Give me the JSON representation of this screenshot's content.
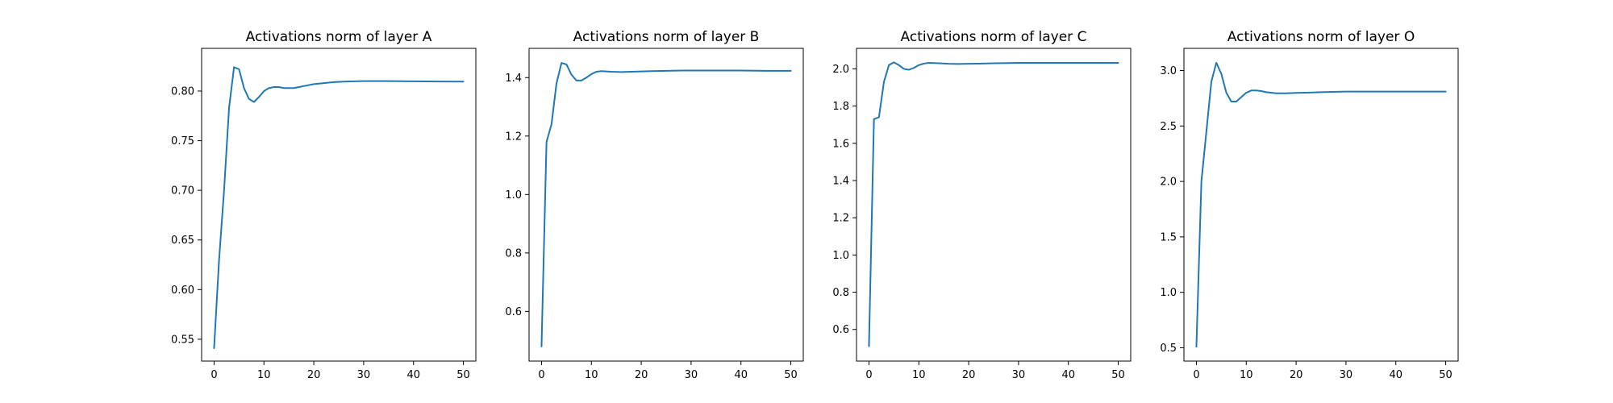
{
  "chart_data": [
    {
      "type": "line",
      "title": "Activations norm of layer A",
      "xlabel": "",
      "ylabel": "",
      "xlim": [
        -2.5,
        52.5
      ],
      "ylim": [
        0.528,
        0.843
      ],
      "xticks": [
        0,
        10,
        20,
        30,
        40,
        50
      ],
      "yticks": [
        0.55,
        0.6,
        0.65,
        0.7,
        0.75,
        0.8
      ],
      "ytick_labels": [
        "0.55",
        "0.60",
        "0.65",
        "0.70",
        "0.75",
        "0.80"
      ],
      "grid": false,
      "color": "#1f77b4",
      "series": [
        {
          "x": [
            0,
            1,
            2,
            3,
            4,
            5,
            6,
            7,
            8,
            9,
            10,
            11,
            12,
            13,
            14,
            15,
            16,
            17,
            18,
            19,
            20,
            22,
            24,
            26,
            28,
            30,
            32,
            35,
            40,
            45,
            50
          ],
          "y": [
            0.541,
            0.63,
            0.7,
            0.783,
            0.824,
            0.822,
            0.803,
            0.792,
            0.789,
            0.794,
            0.8,
            0.803,
            0.804,
            0.804,
            0.803,
            0.803,
            0.803,
            0.804,
            0.805,
            0.806,
            0.807,
            0.808,
            0.809,
            0.8095,
            0.8098,
            0.81,
            0.81,
            0.81,
            0.8098,
            0.8096,
            0.8095
          ]
        }
      ]
    },
    {
      "type": "line",
      "title": "Activations norm of layer B",
      "xlabel": "",
      "ylabel": "",
      "xlim": [
        -2.5,
        52.5
      ],
      "ylim": [
        0.43,
        1.5
      ],
      "xticks": [
        0,
        10,
        20,
        30,
        40,
        50
      ],
      "yticks": [
        0.6,
        0.8,
        1.0,
        1.2,
        1.4
      ],
      "ytick_labels": [
        "0.6",
        "0.8",
        "1.0",
        "1.2",
        "1.4"
      ],
      "grid": false,
      "color": "#1f77b4",
      "series": [
        {
          "x": [
            0,
            1,
            2,
            3,
            4,
            5,
            6,
            7,
            8,
            9,
            10,
            11,
            12,
            13,
            14,
            16,
            18,
            20,
            22,
            25,
            28,
            30,
            35,
            40,
            45,
            50
          ],
          "y": [
            0.48,
            1.18,
            1.24,
            1.38,
            1.45,
            1.445,
            1.41,
            1.39,
            1.39,
            1.4,
            1.412,
            1.42,
            1.422,
            1.421,
            1.42,
            1.419,
            1.42,
            1.421,
            1.422,
            1.423,
            1.424,
            1.424,
            1.424,
            1.424,
            1.423,
            1.423
          ]
        }
      ]
    },
    {
      "type": "line",
      "title": "Activations norm of layer C",
      "xlabel": "",
      "ylabel": "",
      "xlim": [
        -2.5,
        52.5
      ],
      "ylim": [
        0.43,
        2.11
      ],
      "xticks": [
        0,
        10,
        20,
        30,
        40,
        50
      ],
      "yticks": [
        0.6,
        0.8,
        1.0,
        1.2,
        1.4,
        1.6,
        1.8,
        2.0
      ],
      "ytick_labels": [
        "0.6",
        "0.8",
        "1.0",
        "1.2",
        "1.4",
        "1.6",
        "1.8",
        "2.0"
      ],
      "grid": false,
      "color": "#1f77b4",
      "series": [
        {
          "x": [
            0,
            1,
            2,
            3,
            4,
            5,
            6,
            7,
            8,
            9,
            10,
            11,
            12,
            13,
            14,
            16,
            18,
            20,
            22,
            25,
            28,
            30,
            35,
            40,
            45,
            50
          ],
          "y": [
            0.51,
            1.73,
            1.74,
            1.93,
            2.02,
            2.035,
            2.02,
            2.0,
            1.995,
            2.005,
            2.02,
            2.028,
            2.032,
            2.031,
            2.03,
            2.027,
            2.026,
            2.027,
            2.028,
            2.03,
            2.031,
            2.032,
            2.032,
            2.032,
            2.032,
            2.032
          ]
        }
      ]
    },
    {
      "type": "line",
      "title": "Activations norm of layer O",
      "xlabel": "",
      "ylabel": "",
      "xlim": [
        -2.5,
        52.5
      ],
      "ylim": [
        0.38,
        3.2
      ],
      "xticks": [
        0,
        10,
        20,
        30,
        40,
        50
      ],
      "yticks": [
        0.5,
        1.0,
        1.5,
        2.0,
        2.5,
        3.0
      ],
      "ytick_labels": [
        "0.5",
        "1.0",
        "1.5",
        "2.0",
        "2.5",
        "3.0"
      ],
      "grid": false,
      "color": "#1f77b4",
      "series": [
        {
          "x": [
            0,
            1,
            2,
            3,
            4,
            5,
            6,
            7,
            8,
            9,
            10,
            11,
            12,
            13,
            14,
            16,
            18,
            20,
            22,
            25,
            28,
            30,
            35,
            40,
            45,
            50
          ],
          "y": [
            0.51,
            2.0,
            2.45,
            2.9,
            3.07,
            2.97,
            2.8,
            2.72,
            2.72,
            2.76,
            2.8,
            2.82,
            2.82,
            2.815,
            2.805,
            2.795,
            2.795,
            2.798,
            2.8,
            2.805,
            2.808,
            2.81,
            2.81,
            2.81,
            2.81,
            2.81
          ]
        }
      ]
    }
  ]
}
